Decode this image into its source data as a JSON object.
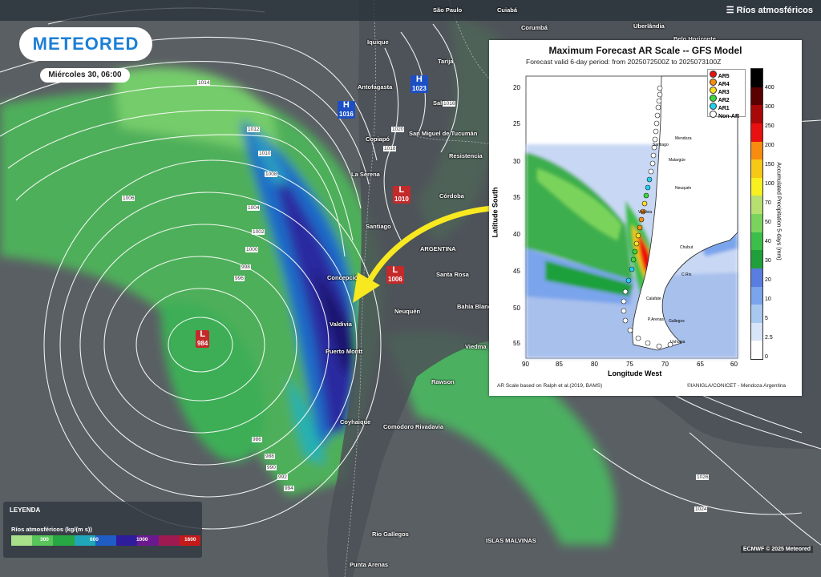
{
  "header": {
    "layer_name": "Ríos atmosféricos"
  },
  "logo": {
    "text": "METEORED"
  },
  "date_label": "Miércoles 30, 06:00",
  "cities": [
    {
      "name": "Iquique"
    },
    {
      "name": "Antofagasta"
    },
    {
      "name": "Copiapó"
    },
    {
      "name": "La Serena"
    },
    {
      "name": "Santiago"
    },
    {
      "name": "Concepción"
    },
    {
      "name": "Valdivia"
    },
    {
      "name": "Puerto Montt"
    },
    {
      "name": "Coyhaique"
    },
    {
      "name": "Comodoro Rivadavia"
    },
    {
      "name": "Río Gallegos"
    },
    {
      "name": "Punta Arenas"
    },
    {
      "name": "ISLAS MALVINAS"
    },
    {
      "name": "ARGENTINA"
    },
    {
      "name": "Santa Rosa"
    },
    {
      "name": "Neuquén"
    },
    {
      "name": "Bahía Blanca"
    },
    {
      "name": "Rawson"
    },
    {
      "name": "Córdoba"
    },
    {
      "name": "Corumbá"
    },
    {
      "name": "Uberlândia"
    },
    {
      "name": "Belo Horizonte"
    },
    {
      "name": "Cuiabá"
    },
    {
      "name": "Tarija"
    },
    {
      "name": "Salta"
    },
    {
      "name": "Viedma"
    },
    {
      "name": "San Miguel de Tucumán"
    },
    {
      "name": "Resistencia"
    },
    {
      "name": "São Paulo"
    }
  ],
  "pressure_centers": [
    {
      "type": "H",
      "value": "1016"
    },
    {
      "type": "H",
      "value": "1023"
    },
    {
      "type": "L",
      "value": "1010"
    },
    {
      "type": "L",
      "value": "1006"
    },
    {
      "type": "L",
      "value": "984"
    }
  ],
  "isobar_labels": [
    "1014",
    "1012",
    "1010",
    "1008",
    "1006",
    "1004",
    "1002",
    "1000",
    "998",
    "996",
    "986",
    "988",
    "990",
    "992",
    "994",
    "1016",
    "1018",
    "1020",
    "1026",
    "1024"
  ],
  "legend": {
    "title": "LEYENDA",
    "subtitle": "Ríos atmosféricos (kg/(m s))",
    "ticks": [
      "300",
      "600",
      "1000",
      "1600"
    ],
    "colors": [
      "#a8e08a",
      "#58c45a",
      "#28a844",
      "#1fa6b8",
      "#1f5cc4",
      "#2e1c9c",
      "#6a1a8e",
      "#a01a52",
      "#c41a1a"
    ]
  },
  "copyright": "ECMWF © 2025 Meteored",
  "inset": {
    "title": "Maximum Forecast AR Scale -- GFS Model",
    "subtitle": "Forecast valid 6-day period: from 2025072500Z to 2025073100Z",
    "ylabel": "Latitude South",
    "xlabel": "Longitude West",
    "colorbar_label": "Accumulated Precipitation 5-days (mm)",
    "xticks": [
      "90",
      "85",
      "80",
      "75",
      "70",
      "65",
      "60"
    ],
    "yticks": [
      "20",
      "25",
      "30",
      "35",
      "40",
      "45",
      "50",
      "55"
    ],
    "colorbar_ticks": [
      "0",
      "2.5",
      "5",
      "10",
      "20",
      "30",
      "40",
      "50",
      "70",
      "100",
      "150",
      "200",
      "250",
      "300",
      "400"
    ],
    "colorbar_colors": [
      "#ffffff",
      "#d8e4f8",
      "#a8c8f0",
      "#7aa4ec",
      "#5a7ee0",
      "#1fa03a",
      "#3cbe4a",
      "#7ad45c",
      "#b8e070",
      "#f8f020",
      "#f8c818",
      "#f88c10",
      "#e81010",
      "#a80808",
      "#5a0000",
      "#000000"
    ],
    "ar_legend": [
      {
        "label": "AR5",
        "color": "#e81010"
      },
      {
        "label": "AR4",
        "color": "#f88c10"
      },
      {
        "label": "AR3",
        "color": "#f8e020"
      },
      {
        "label": "AR2",
        "color": "#38d838"
      },
      {
        "label": "AR1",
        "color": "#20d0f0"
      },
      {
        "label": "Non-AR",
        "color": "#ffffff"
      }
    ],
    "places": [
      "Mendoza",
      "Malargüe",
      "Neuquén",
      "Santiago",
      "Valdivia",
      "Ushuaia",
      "P.Arenas",
      "Gallegos",
      "Calafate",
      "Chubut",
      "C.Riv."
    ],
    "footer_left": "AR Scale based on Ralph et al.(2019, BAMS)",
    "footer_right": "©IANIGLA/CONICET - Mendoza Argentina"
  }
}
